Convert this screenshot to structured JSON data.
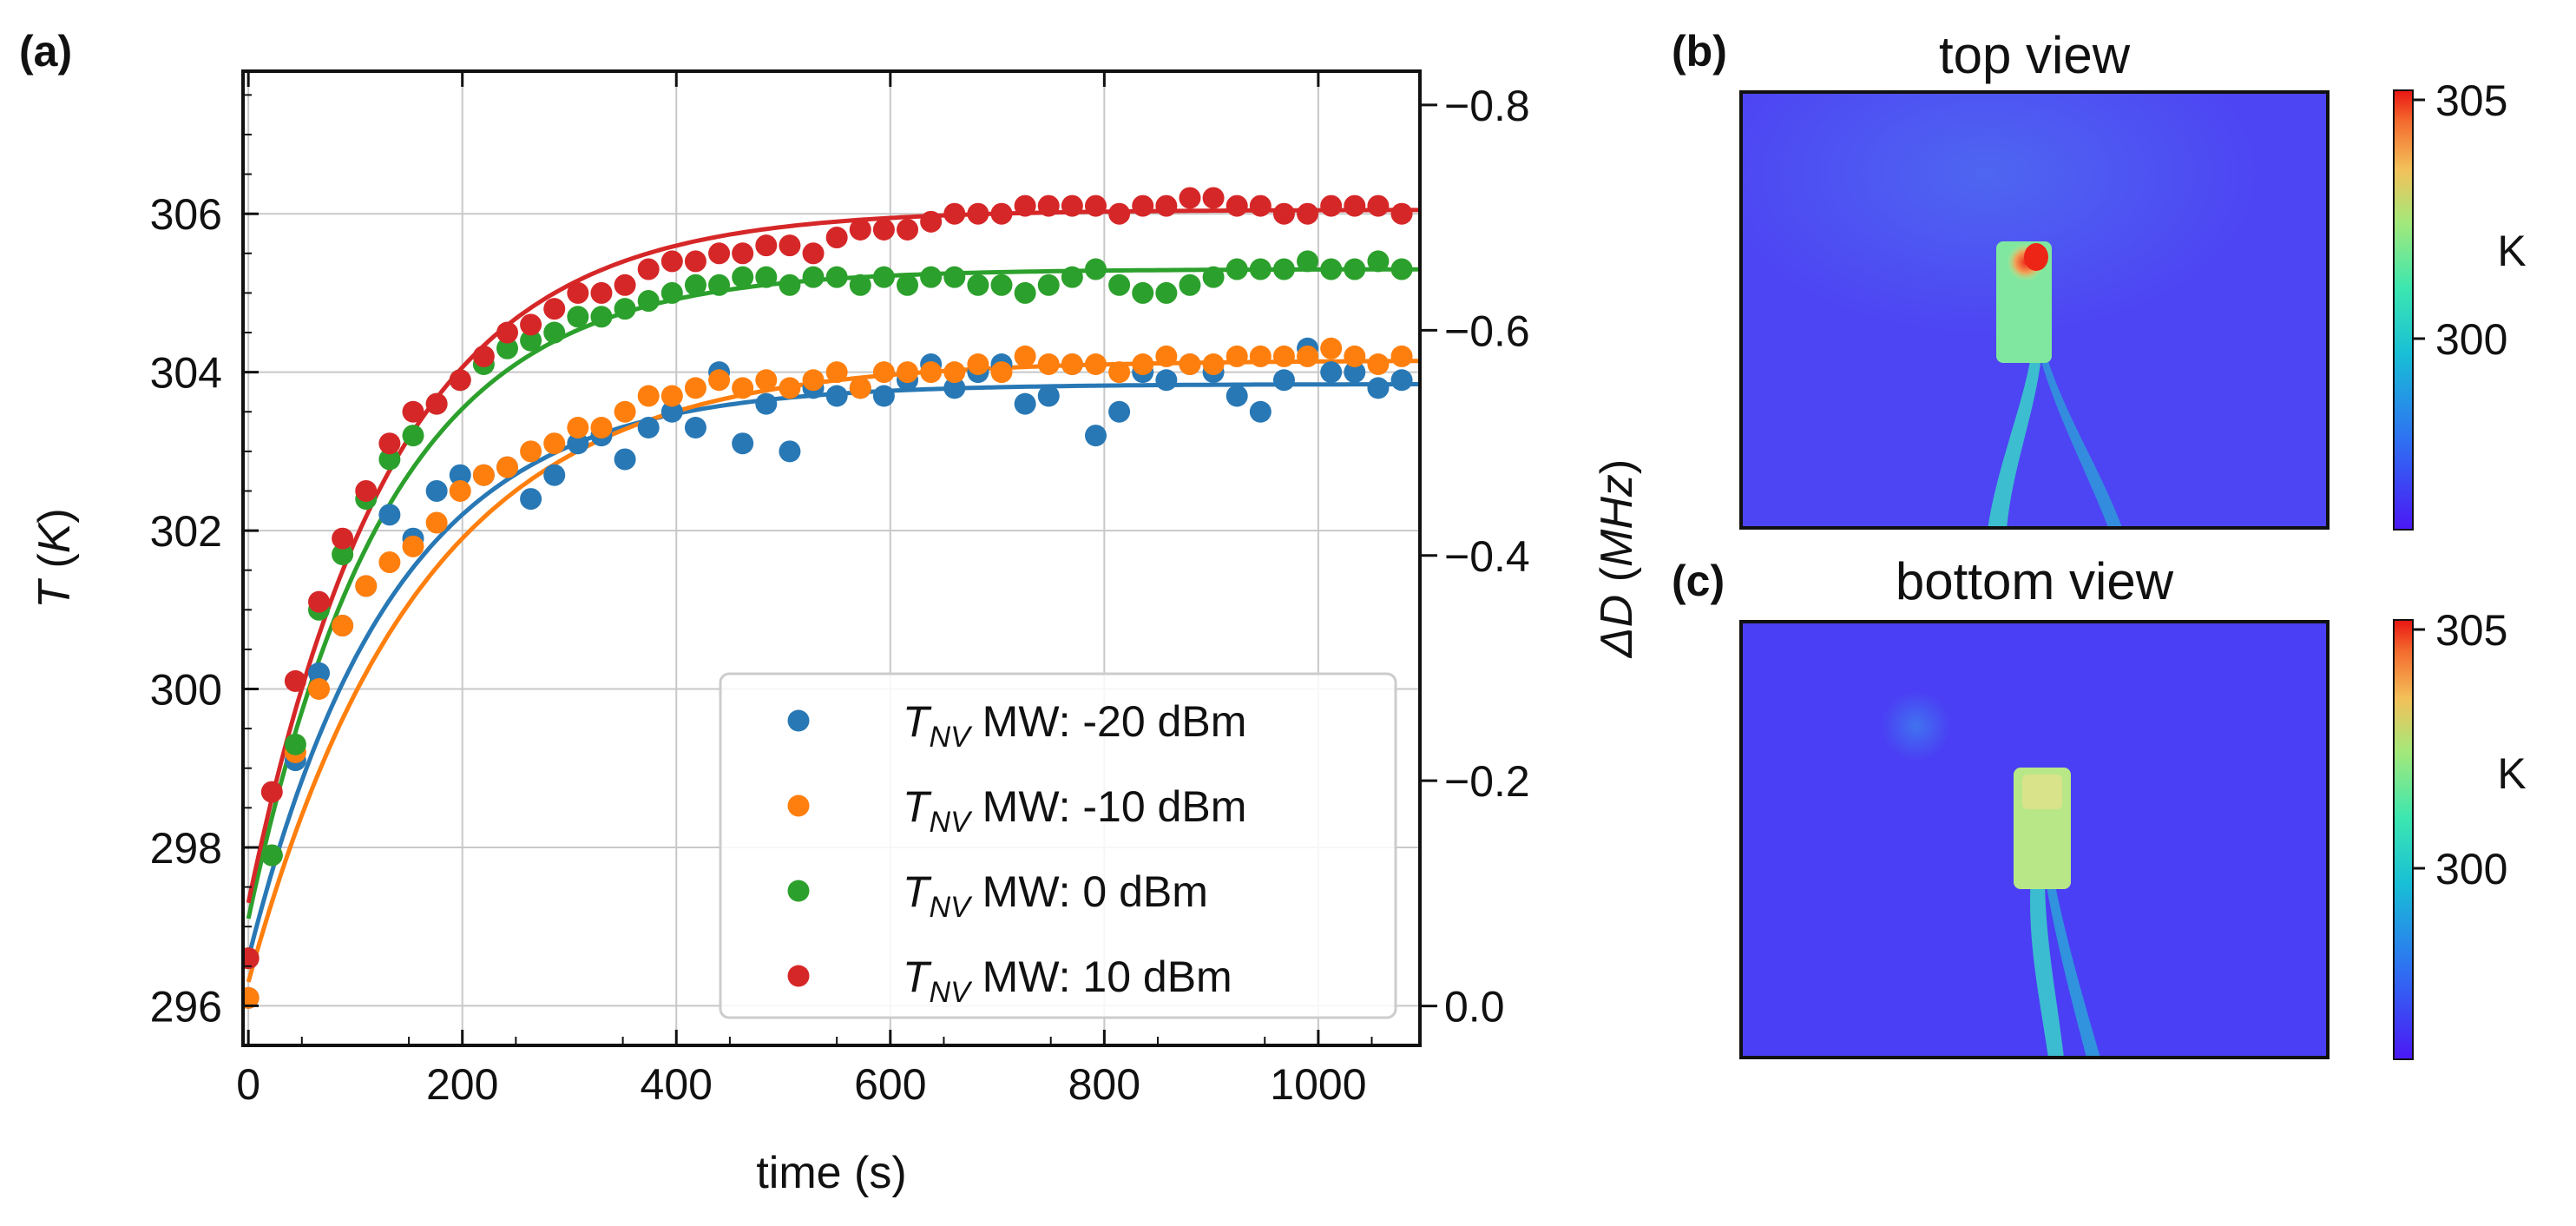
{
  "colors": {
    "c_m20": "#2878b5",
    "c_m10": "#ff7f0e",
    "c_0": "#2ca02c",
    "c_10": "#d62728"
  },
  "panel_labels": {
    "a": "(a)",
    "b": "(b)",
    "c": "(c)"
  },
  "chart_data": {
    "type": "scatter",
    "xlabel": "time (s)",
    "ylabel_var": "T",
    "ylabel_unit": "K",
    "y2label_var": "ΔD",
    "y2label_unit": "MHz",
    "xlim": [
      -5,
      1095
    ],
    "ylim": [
      295.5,
      307.8
    ],
    "y2lim": [
      0.035,
      -0.83
    ],
    "xticks": [
      0,
      200,
      400,
      600,
      800,
      1000
    ],
    "xtick_labels": [
      "0",
      "200",
      "400",
      "600",
      "800",
      "1000"
    ],
    "yticks": [
      296,
      298,
      300,
      302,
      304,
      306
    ],
    "ytick_labels": [
      "296",
      "298",
      "300",
      "302",
      "304",
      "306"
    ],
    "y2ticks": [
      0.0,
      -0.2,
      -0.4,
      -0.6,
      -0.8
    ],
    "y2tick_labels": [
      "0.0",
      "−0.2",
      "−0.4",
      "−0.6",
      "−0.8"
    ],
    "legend_position": "lower-right",
    "legend_var": "T",
    "legend_sub": "NV",
    "x": [
      0,
      22,
      44,
      66,
      88,
      110,
      132,
      154,
      176,
      198,
      220,
      242,
      264,
      286,
      308,
      330,
      352,
      374,
      396,
      418,
      440,
      462,
      484,
      506,
      528,
      550,
      572,
      594,
      616,
      638,
      660,
      682,
      704,
      726,
      748,
      770,
      792,
      814,
      836,
      858,
      880,
      902,
      924,
      946,
      968,
      990,
      1012,
      1034,
      1056,
      1078
    ],
    "series": [
      {
        "name": "MW: -20 dBm",
        "color_key": "c_m20",
        "fit": {
          "T0": 296.6,
          "Tinf": 303.85,
          "tau": 135
        },
        "values": [
          296.1,
          297.9,
          299.1,
          300.2,
          300.8,
          301.3,
          302.2,
          301.9,
          302.5,
          302.7,
          302.7,
          302.8,
          302.4,
          302.7,
          303.1,
          303.2,
          302.9,
          303.3,
          303.5,
          303.3,
          304.0,
          303.1,
          303.6,
          303.0,
          303.8,
          303.7,
          303.8,
          303.7,
          303.9,
          304.1,
          303.8,
          304.0,
          304.1,
          303.6,
          303.7,
          304.1,
          303.2,
          303.5,
          304.0,
          303.9,
          304.1,
          304.0,
          303.7,
          303.5,
          303.9,
          304.3,
          304.0,
          304.0,
          303.8,
          303.9
        ]
      },
      {
        "name": "MW: -10 dBm",
        "color_key": "c_m10",
        "fit": {
          "T0": 296.3,
          "Tinf": 304.15,
          "tau": 160
        },
        "values": [
          296.1,
          297.9,
          299.2,
          300.0,
          300.8,
          301.3,
          301.6,
          301.8,
          302.1,
          302.5,
          302.7,
          302.8,
          303.0,
          303.1,
          303.3,
          303.3,
          303.5,
          303.7,
          303.7,
          303.8,
          303.9,
          303.8,
          303.9,
          303.8,
          303.9,
          304.0,
          303.8,
          304.0,
          304.0,
          304.0,
          304.0,
          304.1,
          304.0,
          304.2,
          304.1,
          304.1,
          304.1,
          304.0,
          304.1,
          304.2,
          304.1,
          304.1,
          304.2,
          304.2,
          304.2,
          304.2,
          304.3,
          304.2,
          304.1,
          304.2
        ]
      },
      {
        "name": "MW: 0 dBm",
        "color_key": "c_0",
        "fit": {
          "T0": 297.1,
          "Tinf": 305.3,
          "tau": 130
        },
        "values": [
          296.6,
          297.9,
          299.3,
          301.0,
          301.7,
          302.4,
          302.9,
          303.2,
          303.6,
          303.9,
          304.1,
          304.3,
          304.4,
          304.5,
          304.7,
          304.7,
          304.8,
          304.9,
          305.0,
          305.1,
          305.1,
          305.2,
          305.2,
          305.1,
          305.2,
          305.2,
          305.1,
          305.2,
          305.1,
          305.2,
          305.2,
          305.1,
          305.1,
          305.0,
          305.1,
          305.2,
          305.3,
          305.1,
          305.0,
          305.0,
          305.1,
          305.2,
          305.3,
          305.3,
          305.3,
          305.4,
          305.3,
          305.3,
          305.4,
          305.3
        ]
      },
      {
        "name": "MW: 10 dBm",
        "color_key": "c_10",
        "fit": {
          "T0": 297.3,
          "Tinf": 306.05,
          "tau": 135
        },
        "values": [
          296.6,
          298.7,
          300.1,
          301.1,
          301.9,
          302.5,
          303.1,
          303.5,
          303.6,
          303.9,
          304.2,
          304.5,
          304.6,
          304.8,
          305.0,
          305.0,
          305.1,
          305.3,
          305.4,
          305.4,
          305.5,
          305.5,
          305.6,
          305.6,
          305.5,
          305.7,
          305.8,
          305.8,
          305.8,
          305.9,
          306.0,
          306.0,
          306.0,
          306.1,
          306.1,
          306.1,
          306.1,
          306.0,
          306.1,
          306.1,
          306.2,
          306.2,
          306.1,
          306.1,
          306.0,
          306.0,
          306.1,
          306.1,
          306.1,
          306.0
        ]
      }
    ]
  },
  "maps": {
    "top": {
      "title": "top view",
      "colorbar": {
        "unit": "K",
        "ticks": [
          "305",
          "300"
        ],
        "vmin": 296,
        "vmax": 305.2
      }
    },
    "bottom": {
      "title": "bottom view",
      "colorbar": {
        "unit": "K",
        "ticks": [
          "305",
          "300"
        ],
        "vmin": 296,
        "vmax": 305.2
      }
    }
  }
}
